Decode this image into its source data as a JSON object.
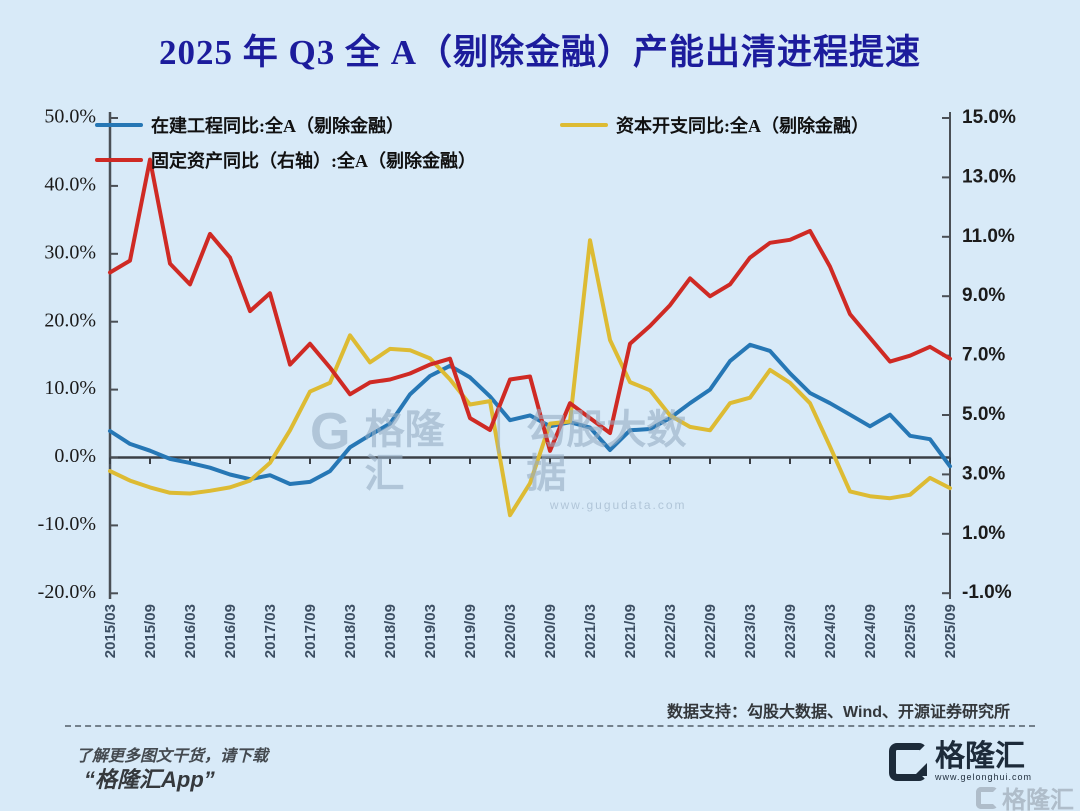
{
  "title": "2025 年 Q3 全 A（剔除金融）产能出清进程提速",
  "chart_data": {
    "type": "line",
    "title": "2025 年 Q3 全 A（剔除金融）产能出清进程提速",
    "legend_position": "top",
    "grid": false,
    "x_labels": [
      "2015/03",
      "2015/09",
      "2016/03",
      "2016/09",
      "2017/03",
      "2017/09",
      "2018/03",
      "2018/09",
      "2019/03",
      "2019/09",
      "2020/03",
      "2020/09",
      "2021/03",
      "2021/09",
      "2022/03",
      "2022/09",
      "2023/03",
      "2023/09",
      "2024/03",
      "2024/09",
      "2025/03",
      "2025/09"
    ],
    "x": [
      "2015/03",
      "2015/06",
      "2015/09",
      "2015/12",
      "2016/03",
      "2016/06",
      "2016/09",
      "2016/12",
      "2017/03",
      "2017/06",
      "2017/09",
      "2017/12",
      "2018/03",
      "2018/06",
      "2018/09",
      "2018/12",
      "2019/03",
      "2019/06",
      "2019/09",
      "2019/12",
      "2020/03",
      "2020/06",
      "2020/09",
      "2020/12",
      "2021/03",
      "2021/06",
      "2021/09",
      "2021/12",
      "2022/03",
      "2022/06",
      "2022/09",
      "2022/12",
      "2023/03",
      "2023/06",
      "2023/09",
      "2023/12",
      "2024/03",
      "2024/06",
      "2024/09",
      "2024/12",
      "2025/03",
      "2025/06",
      "2025/09"
    ],
    "left_axis": {
      "ticks": [
        "50.0%",
        "40.0%",
        "30.0%",
        "20.0%",
        "10.0%",
        "0.0%",
        "-10.0%",
        "-20.0%"
      ],
      "max": 50,
      "min": -20,
      "unit": "%"
    },
    "right_axis": {
      "ticks": [
        "15.0%",
        "13.0%",
        "11.0%",
        "9.0%",
        "7.0%",
        "5.0%",
        "3.0%",
        "1.0%",
        "-1.0%"
      ],
      "max": 15,
      "min": -1,
      "unit": "%"
    },
    "series": [
      {
        "name": "在建工程同比:全A（剔除金融）",
        "axis": "left",
        "color": "#2677b5",
        "values": [
          3.9,
          2.0,
          1.0,
          -0.2,
          -0.8,
          -1.5,
          -2.5,
          -3.2,
          -2.6,
          -3.9,
          -3.6,
          -2.0,
          1.5,
          3.3,
          5.0,
          9.3,
          12.0,
          13.5,
          11.8,
          9.0,
          5.5,
          6.2,
          4.6,
          5.2,
          4.4,
          1.1,
          4.0,
          4.2,
          5.8,
          8.0,
          10.0,
          14.2,
          16.6,
          15.7,
          12.4,
          9.5,
          8.0,
          6.3,
          4.6,
          6.3,
          3.2,
          2.7,
          -1.3
        ]
      },
      {
        "name": "资本开支同比:全A（剔除金融）",
        "axis": "left",
        "color": "#ddbb33",
        "values": [
          -2.0,
          -3.4,
          -4.4,
          -5.2,
          -5.3,
          -4.9,
          -4.4,
          -3.4,
          -0.8,
          4.0,
          9.7,
          11.0,
          18.0,
          14.0,
          16.0,
          15.8,
          14.6,
          11.5,
          7.8,
          8.3,
          -8.5,
          -3.8,
          5.0,
          5.3,
          32.0,
          17.3,
          11.1,
          9.9,
          6.2,
          4.5,
          4.0,
          8.0,
          8.8,
          12.9,
          11.0,
          8.0,
          1.6,
          -5.0,
          -5.7,
          -6.0,
          -5.5,
          -3.0,
          -4.5
        ]
      },
      {
        "name": "固定资产同比（右轴）:全A（剔除金融）",
        "axis": "right",
        "color": "#cf2a24",
        "values": [
          9.8,
          10.2,
          13.6,
          10.1,
          9.4,
          11.1,
          10.3,
          8.5,
          9.1,
          6.7,
          7.4,
          6.6,
          5.7,
          6.1,
          6.2,
          6.4,
          6.7,
          6.9,
          4.9,
          4.5,
          6.2,
          6.3,
          3.8,
          5.4,
          4.9,
          4.4,
          7.4,
          8.0,
          8.7,
          9.6,
          9.0,
          9.4,
          10.3,
          10.8,
          10.9,
          11.2,
          10.0,
          8.4,
          7.6,
          6.8,
          7.0,
          7.3,
          6.9
        ]
      }
    ]
  },
  "watermark": {
    "brand": "格隆汇",
    "partner": "勾股大数据",
    "url": "www.gugudata.com"
  },
  "footer": {
    "source": "数据支持：勾股大数据、Wind、开源证券研究所",
    "promo_line1": "了解更多图文干货，请下载",
    "promo_line2": "“格隆汇App”",
    "brand_name": "格隆汇",
    "brand_url": "www.gelonghui.com",
    "corner_brand": "格隆汇"
  },
  "colors": {
    "background": "#d8eaf8",
    "title": "#1c1c9c",
    "series_blue": "#2677b5",
    "series_yellow": "#ddbb33",
    "series_red": "#cf2a24",
    "axis": "#4a4f55"
  }
}
